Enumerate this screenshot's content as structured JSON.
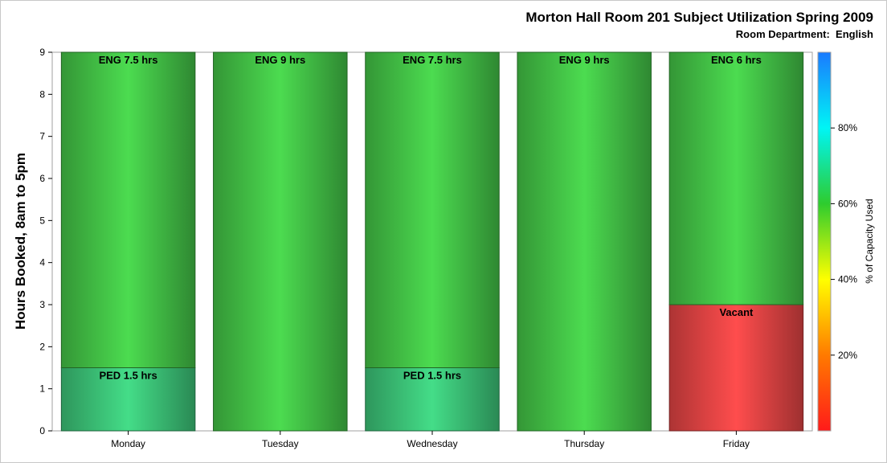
{
  "chart_data": {
    "type": "bar",
    "stacked": true,
    "title": "Morton Hall Room 201 Subject Utilization Spring 2009",
    "subtitle_label": "Room Department:",
    "subtitle_value": "English",
    "ylabel": "Hours Booked, 8am to 5pm",
    "xlabel": "",
    "ylim": [
      0,
      9
    ],
    "yticks": [
      "0",
      "1",
      "2",
      "3",
      "4",
      "5",
      "6",
      "7",
      "8",
      "9"
    ],
    "categories": [
      "Monday",
      "Tuesday",
      "Wednesday",
      "Thursday",
      "Friday"
    ],
    "segments": [
      [
        {
          "label": "PED 1.5 hrs",
          "value": 1.5,
          "color": "#44dd88"
        },
        {
          "label": "ENG 7.5 hrs",
          "value": 7.5,
          "color": "#4cdc50"
        }
      ],
      [
        {
          "label": "ENG 9 hrs",
          "value": 9,
          "color": "#4cdc50"
        }
      ],
      [
        {
          "label": "PED 1.5 hrs",
          "value": 1.5,
          "color": "#44dd88"
        },
        {
          "label": "ENG 7.5 hrs",
          "value": 7.5,
          "color": "#4cdc50"
        }
      ],
      [
        {
          "label": "ENG 9 hrs",
          "value": 9,
          "color": "#4cdc50"
        }
      ],
      [
        {
          "label": "Vacant",
          "value": 3,
          "color": "#ff4d4d"
        },
        {
          "label": "ENG 6 hrs",
          "value": 6,
          "color": "#4cdc50"
        }
      ]
    ],
    "colorbar": {
      "label": "% of Capacity Used",
      "ticks": [
        "20%",
        "40%",
        "60%",
        "80%"
      ],
      "range": [
        0,
        100
      ],
      "tick_values": [
        20,
        40,
        60,
        80
      ],
      "gradient_colors": [
        "#ff1a1a",
        "#ff7a00",
        "#ffff00",
        "#2ecc2e",
        "#00f5f5",
        "#1a7aff"
      ]
    },
    "grid": false
  }
}
